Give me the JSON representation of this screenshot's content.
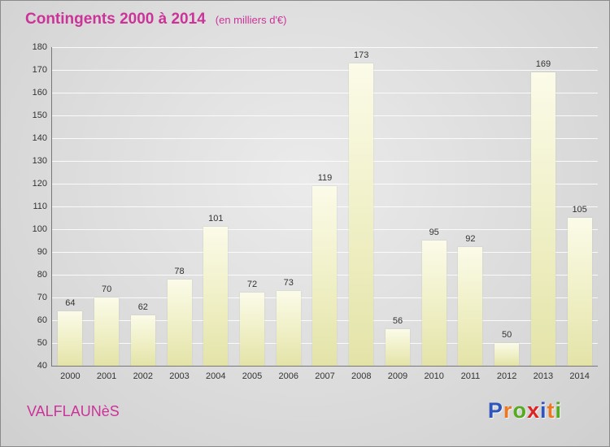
{
  "header": {
    "title": "Contingents 2000 à 2014",
    "subtitle": "(en milliers d'€)"
  },
  "footer": {
    "location": "VALFLAUNèS"
  },
  "logo": {
    "text": "Proxiti",
    "letters": [
      {
        "ch": "P",
        "color": "#2e55bb"
      },
      {
        "ch": "r",
        "color": "#ee7722"
      },
      {
        "ch": "o",
        "color": "#55aa22"
      },
      {
        "ch": "x",
        "color": "#dd2222"
      },
      {
        "ch": "i",
        "color": "#2e55bb"
      },
      {
        "ch": "t",
        "color": "#ee7722"
      },
      {
        "ch": "i",
        "color": "#55aa22"
      }
    ]
  },
  "colors": {
    "accent": "#cc3399",
    "bar_top": "#fbfbe9",
    "bar_bottom": "#e3e3a8",
    "axis": "#777777",
    "text": "#333333"
  },
  "chart_data": {
    "type": "bar",
    "title": "Contingents 2000 à 2014",
    "subtitle": "(en milliers d'€)",
    "categories": [
      "2000",
      "2001",
      "2002",
      "2003",
      "2004",
      "2005",
      "2006",
      "2007",
      "2008",
      "2009",
      "2010",
      "2011",
      "2012",
      "2013",
      "2014"
    ],
    "values": [
      64,
      70,
      62,
      78,
      101,
      72,
      73,
      119,
      173,
      56,
      95,
      92,
      50,
      169,
      105
    ],
    "ylim": [
      40,
      180
    ],
    "ytick_step": 10,
    "grid": true,
    "legend": false,
    "xlabel": "",
    "ylabel": ""
  }
}
